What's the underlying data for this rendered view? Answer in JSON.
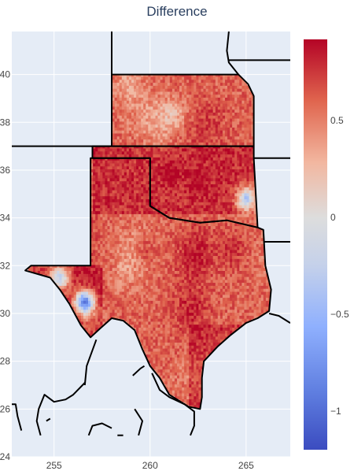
{
  "chart_data": {
    "type": "heatmap",
    "title": "Difference",
    "xlabel": "",
    "ylabel": "",
    "xlim": [
      252.8,
      267.3
    ],
    "ylim": [
      24,
      41.8
    ],
    "x_ticks": [
      255,
      260,
      265
    ],
    "y_ticks": [
      24,
      26,
      28,
      30,
      32,
      34,
      36,
      38,
      40
    ],
    "x_tick_labels": [
      "255",
      "260",
      "265"
    ],
    "y_tick_labels": [
      "24",
      "26",
      "28",
      "30",
      "32",
      "34",
      "36",
      "38",
      "40"
    ],
    "grid": true,
    "colorscale": "RdBu_r (coolwarm)",
    "colorbar": {
      "range": [
        -1.2,
        0.92
      ],
      "ticks": [
        -1,
        -0.5,
        0,
        0.5
      ],
      "tick_labels": [
        "−1",
        "−0.5",
        "0",
        "0.5"
      ]
    },
    "regions": [
      "Kansas",
      "Oklahoma",
      "Texas"
    ],
    "typical_value_range": [
      0.2,
      0.92
    ],
    "notable_low_values": [
      {
        "lon": 256.6,
        "lat": 30.5,
        "value": -1.1
      },
      {
        "lon": 255.3,
        "lat": 31.5,
        "value": -0.4
      },
      {
        "lon": 265.0,
        "lat": 34.8,
        "value": -0.5
      }
    ]
  },
  "colors": {
    "plot_background": "#e5ecf6",
    "grid": "#ffffff",
    "border": "#000000",
    "colorbar_top": "#b40426",
    "colorbar_mid": "#dddddd",
    "colorbar_bottom": "#3b4cc0"
  }
}
